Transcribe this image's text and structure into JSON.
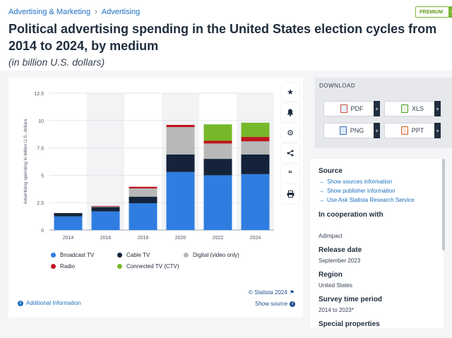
{
  "breadcrumb": [
    "Advertising & Marketing",
    "Advertising"
  ],
  "premium_label": "PREMIUM",
  "title": "Political advertising spending in the United States election cycles from 2014 to 2024, by medium",
  "subtitle": "(in billion U.S. dollars)",
  "chart_data": {
    "type": "bar",
    "stacked": true,
    "categories": [
      "2014",
      "2016",
      "2018",
      "2020",
      "2022",
      "2024"
    ],
    "ylabel": "Advertising spending in billion U.S. dollars",
    "ylim": [
      0,
      12.5
    ],
    "yticks": [
      "0",
      "2.5",
      "5",
      "7.5",
      "10",
      "12.5"
    ],
    "grid": true,
    "series": [
      {
        "name": "Broadcast TV",
        "color": "#2f7de1",
        "values": [
          1.25,
          1.7,
          2.45,
          5.3,
          5.0,
          5.1
        ]
      },
      {
        "name": "Cable TV",
        "color": "#14233a",
        "values": [
          0.3,
          0.4,
          0.6,
          1.6,
          1.5,
          1.8
        ]
      },
      {
        "name": "Digital (video only)",
        "color": "#b8b8b8",
        "values": [
          0.0,
          0.05,
          0.75,
          2.5,
          1.4,
          1.2
        ]
      },
      {
        "name": "Radio",
        "color": "#c0151f",
        "values": [
          0.0,
          0.05,
          0.15,
          0.2,
          0.25,
          0.4
        ]
      },
      {
        "name": "Connected TV (CTV)",
        "color": "#77b82a",
        "values": [
          0.0,
          0.0,
          0.0,
          0.0,
          1.5,
          1.3
        ]
      }
    ]
  },
  "statista_credit": "© Statista 2024",
  "additional_info": "Additional Information",
  "show_source": "Show source",
  "download": {
    "title": "DOWNLOAD",
    "buttons": [
      "PDF",
      "XLS",
      "PNG",
      "PPT"
    ]
  },
  "source_panel": {
    "source_heading": "Source",
    "links": [
      "Show sources information",
      "Show publisher information",
      "Use Ask Statista Research Service"
    ],
    "cooperation_heading": "In cooperation with",
    "cooperation_value": "AdImpact",
    "release_heading": "Release date",
    "release_value": "September 2023",
    "region_heading": "Region",
    "region_value": "United States",
    "survey_heading": "Survey time period",
    "survey_value": "2014 to 2023*",
    "special_heading": "Special properties"
  },
  "tools": [
    "star-icon",
    "bell-icon",
    "gear-icon",
    "share-icon",
    "quote-icon",
    "print-icon"
  ]
}
